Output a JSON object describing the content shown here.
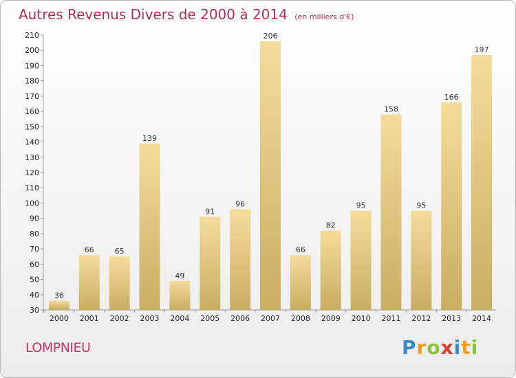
{
  "header": {
    "title": "Autres Revenus Divers de 2000 à 2014",
    "unit_note": "(en milliers d'€)"
  },
  "footer": {
    "location": "LOMPNIEU",
    "logo_text": "Proxiti"
  },
  "chart_data": {
    "type": "bar",
    "title": "Autres Revenus Divers de 2000 à 2014",
    "subtitle": "(en milliers d'€)",
    "xlabel": "",
    "ylabel": "",
    "categories": [
      "2000",
      "2001",
      "2002",
      "2003",
      "2004",
      "2005",
      "2006",
      "2007",
      "2008",
      "2009",
      "2010",
      "2011",
      "2012",
      "2013",
      "2014"
    ],
    "values": [
      36,
      66,
      65,
      139,
      49,
      91,
      96,
      206,
      66,
      82,
      95,
      158,
      95,
      166,
      197
    ],
    "ylim": [
      30,
      210
    ],
    "yticks": [
      30,
      40,
      50,
      60,
      70,
      80,
      90,
      100,
      110,
      120,
      130,
      140,
      150,
      160,
      170,
      180,
      190,
      200,
      210
    ],
    "grid": false,
    "legend": "none",
    "colors": {
      "bar_top": "#f5dc9a",
      "bar_bottom": "#c9ad63",
      "axis": "#9a9a9a"
    }
  }
}
